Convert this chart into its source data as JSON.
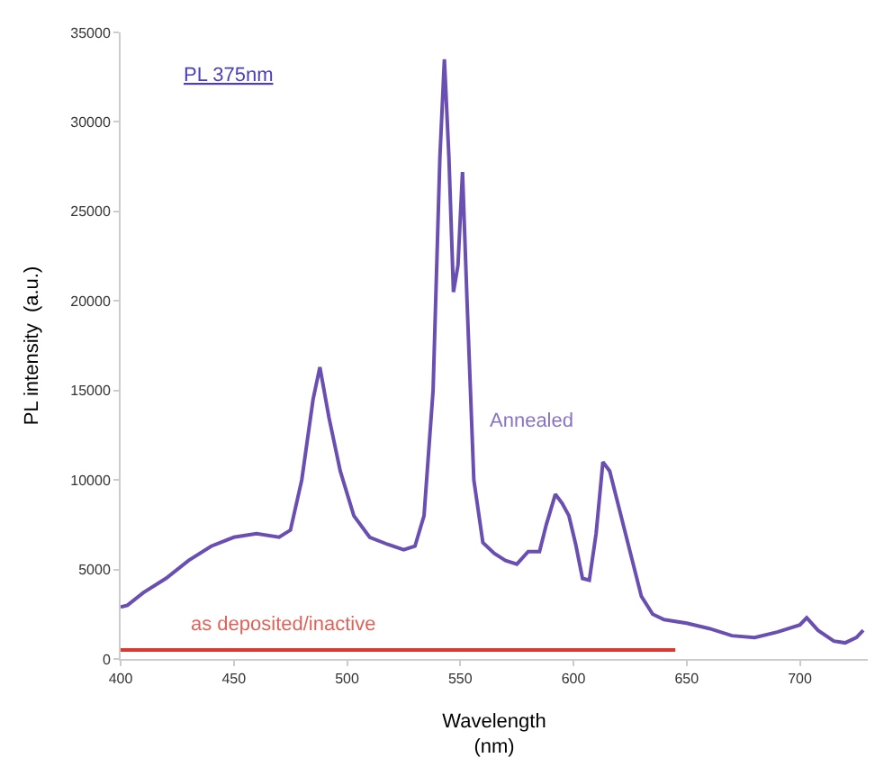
{
  "chart_data": {
    "type": "line",
    "xlabel": "Wavelength\n(nm)",
    "ylabel": "PL intensity  (a.u.)",
    "xlim": [
      400,
      730
    ],
    "xticks": [
      400,
      450,
      500,
      550,
      600,
      650,
      700
    ],
    "ylim": [
      0,
      35000
    ],
    "yticks": [
      0,
      5000,
      10000,
      15000,
      20000,
      25000,
      30000,
      35000
    ],
    "marker": "none",
    "line_style": "solid",
    "series": [
      {
        "color": "#6a4fb3",
        "x": [
          400,
          403,
          410,
          420,
          430,
          440,
          450,
          460,
          470,
          475,
          480,
          485,
          488,
          492,
          497,
          503,
          510,
          518,
          525,
          530,
          534,
          538,
          541,
          543,
          545,
          547,
          549,
          551,
          553,
          556,
          560,
          565,
          570,
          575,
          580,
          585,
          588,
          592,
          595,
          598,
          601,
          604,
          607,
          610,
          613,
          616,
          620,
          625,
          630,
          635,
          640,
          650,
          660,
          670,
          680,
          690,
          700,
          703,
          708,
          715,
          720,
          725,
          728
        ],
        "values": [
          2900,
          3000,
          3700,
          4500,
          5500,
          6300,
          6800,
          7000,
          6800,
          7200,
          10000,
          14500,
          16300,
          13500,
          10500,
          8000,
          6800,
          6400,
          6100,
          6300,
          8000,
          15000,
          28000,
          33500,
          28000,
          20500,
          22000,
          27200,
          20000,
          10000,
          6500,
          5900,
          5500,
          5300,
          6000,
          6000,
          7500,
          9200,
          8700,
          8000,
          6400,
          4500,
          4400,
          7000,
          11000,
          10500,
          8500,
          6000,
          3500,
          2500,
          2200,
          2000,
          1700,
          1300,
          1200,
          1500,
          1900,
          2300,
          1600,
          1000,
          900,
          1200,
          1600
        ]
      },
      {
        "color": "#d93a2f",
        "x": [
          400,
          420,
          440,
          460,
          480,
          500,
          520,
          540,
          560,
          580,
          600,
          620,
          645
        ],
        "values": [
          500,
          500,
          500,
          500,
          500,
          500,
          500,
          500,
          500,
          500,
          500,
          500,
          500
        ]
      }
    ],
    "annotations": [
      "PL 375nm",
      "Annealed",
      "as deposited/inactive"
    ]
  }
}
